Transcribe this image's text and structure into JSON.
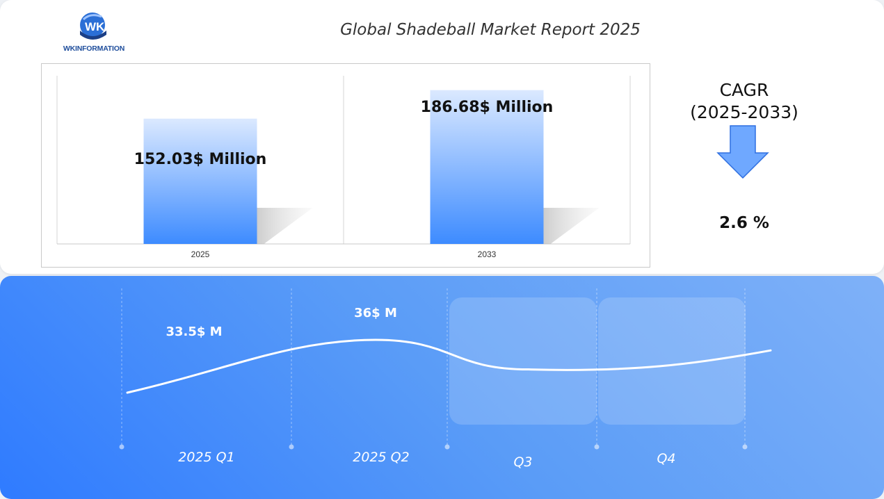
{
  "header": {
    "logo_text": "WKINFORMATION",
    "title": "Global Shadeball Market Report 2025"
  },
  "chart_data": [
    {
      "type": "bar",
      "categories": [
        "2025",
        "2033"
      ],
      "values": [
        152.03,
        186.68
      ],
      "value_labels": [
        "152.03$ Million",
        "186.68$ Million"
      ],
      "title": "",
      "xlabel": "",
      "ylabel": "",
      "ylim": [
        0,
        200
      ],
      "grid": false,
      "colors": {
        "bar_top": "#dbe9ff",
        "bar_bottom": "#3d8bff"
      }
    },
    {
      "type": "line",
      "categories": [
        "2025 Q1",
        "2025 Q2",
        "Q3",
        "Q4"
      ],
      "series": [
        {
          "values": [
            33.5,
            36,
            34.6,
            35.5
          ]
        }
      ],
      "value_labels": [
        "33.5$ M",
        "36$ M"
      ],
      "highlighted_quarters": [
        "Q3",
        "Q4"
      ],
      "colors": {
        "line": "#ffffff",
        "panel_start": "#2f7bff",
        "panel_end": "#7fb1f8"
      }
    }
  ],
  "cagr": {
    "title_line1": "CAGR",
    "title_line2": "(2025-2033)",
    "value": "2.6 %",
    "arrow_icon": "arrow-down-icon",
    "arrow_color": "#6fa8ff"
  }
}
